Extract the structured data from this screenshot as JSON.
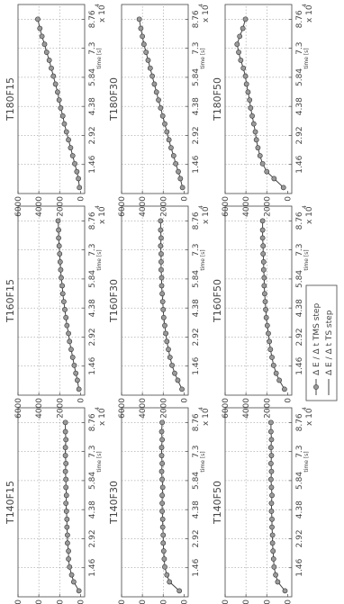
{
  "figure": {
    "x_multiplier": "x 10",
    "x_multiplier_exp": "4",
    "legend": {
      "entries": [
        {
          "label": "Δ E / Δ t  TMS step",
          "marker": "circle",
          "color": "#444444"
        },
        {
          "label": "Δ E / Δ t  TS step",
          "marker": "none",
          "color": "#444444"
        }
      ]
    }
  },
  "chart_data": [
    {
      "type": "line",
      "title": "T140F15",
      "xlabel": "time [s]",
      "ylabel": "",
      "x_ticks": [
        "1.46",
        "2.92",
        "4.38",
        "5.84",
        "7.3",
        "8.76"
      ],
      "y_ticks": [
        "0",
        "2000",
        "4000",
        "6000"
      ],
      "xlim": [
        0,
        9.5
      ],
      "ylim": [
        -400,
        6000
      ],
      "grid": true,
      "x": [
        0.3,
        0.75,
        1.1,
        1.5,
        1.9,
        2.3,
        2.7,
        3.1,
        3.5,
        3.9,
        4.3,
        4.7,
        5.1,
        5.5,
        5.9,
        6.3,
        6.7,
        7.1,
        7.5,
        7.9,
        8.3,
        8.76
      ],
      "series": [
        {
          "values": [
            150,
            650,
            850,
            1050,
            1150,
            1150,
            1250,
            1250,
            1300,
            1300,
            1350,
            1400,
            1350,
            1400,
            1400,
            1450,
            1400,
            1450,
            1450,
            1400,
            1450,
            1450
          ]
        }
      ]
    },
    {
      "type": "line",
      "title": "T140F30",
      "xlabel": "time [s]",
      "ylabel": "",
      "x_ticks": [
        "1.46",
        "2.92",
        "4.38",
        "5.84",
        "7.3",
        "8.76"
      ],
      "y_ticks": [
        "0",
        "2000",
        "4000",
        "6000"
      ],
      "xlim": [
        0,
        9.5
      ],
      "ylim": [
        -400,
        6000
      ],
      "grid": true,
      "x": [
        0.3,
        0.75,
        1.1,
        1.5,
        1.9,
        2.3,
        2.7,
        3.1,
        3.5,
        3.9,
        4.3,
        4.7,
        5.1,
        5.5,
        5.9,
        6.3,
        6.7,
        7.1,
        7.5,
        7.9,
        8.3,
        8.76
      ],
      "series": [
        {
          "values": [
            450,
            1400,
            1650,
            1850,
            1900,
            1950,
            2000,
            2000,
            2050,
            2050,
            2100,
            2100,
            2100,
            2050,
            2100,
            2150,
            2100,
            2150,
            2150,
            2100,
            2150,
            2100
          ]
        }
      ]
    },
    {
      "type": "line",
      "title": "T140F50",
      "xlabel": "time [s]",
      "ylabel": "",
      "x_ticks": [
        "1.46",
        "2.92",
        "4.38",
        "5.84",
        "7.3",
        "8.76"
      ],
      "y_ticks": [
        "0",
        "2000",
        "4000",
        "6000"
      ],
      "xlim": [
        0,
        9.5
      ],
      "ylim": [
        -400,
        6000
      ],
      "grid": true,
      "x": [
        0.3,
        0.75,
        1.1,
        1.5,
        1.9,
        2.3,
        2.7,
        3.1,
        3.5,
        3.9,
        4.3,
        4.7,
        5.1,
        5.5,
        5.9,
        6.3,
        6.7,
        7.1,
        7.5,
        7.9,
        8.3,
        8.76
      ],
      "series": [
        {
          "values": [
            250,
            950,
            1150,
            1300,
            1350,
            1400,
            1450,
            1450,
            1500,
            1500,
            1550,
            1550,
            1500,
            1550,
            1600,
            1550,
            1600,
            1550,
            1600,
            1550,
            1600,
            1600
          ]
        }
      ]
    },
    {
      "type": "line",
      "title": "T160F15",
      "xlabel": "time [s]",
      "ylabel": "",
      "x_ticks": [
        "1.46",
        "2.92",
        "4.38",
        "5.84",
        "7.3",
        "8.76"
      ],
      "y_ticks": [
        "0",
        "2000",
        "4000",
        "6000"
      ],
      "xlim": [
        0,
        9.5
      ],
      "ylim": [
        -400,
        6000
      ],
      "grid": true,
      "x": [
        0.3,
        0.75,
        1.1,
        1.5,
        1.9,
        2.3,
        2.7,
        3.1,
        3.5,
        3.9,
        4.3,
        4.7,
        5.1,
        5.5,
        5.9,
        6.3,
        6.7,
        7.1,
        7.5,
        7.9,
        8.3,
        8.76
      ],
      "series": [
        {
          "values": [
            150,
            300,
            450,
            600,
            750,
            900,
            1050,
            1150,
            1300,
            1400,
            1500,
            1600,
            1700,
            1750,
            1850,
            1900,
            1950,
            2000,
            2050,
            2100,
            2100,
            2150
          ]
        }
      ]
    },
    {
      "type": "line",
      "title": "T160F30",
      "xlabel": "time [s]",
      "ylabel": "",
      "x_ticks": [
        "1.46",
        "2.92",
        "4.38",
        "5.84",
        "7.3",
        "8.76"
      ],
      "y_ticks": [
        "0",
        "2000",
        "4000",
        "6000"
      ],
      "xlim": [
        0,
        9.5
      ],
      "ylim": [
        -400,
        6000
      ],
      "grid": true,
      "x": [
        0.3,
        0.75,
        1.1,
        1.5,
        1.9,
        2.3,
        2.7,
        3.1,
        3.5,
        3.9,
        4.3,
        4.7,
        5.1,
        5.5,
        5.9,
        6.3,
        6.7,
        7.1,
        7.5,
        7.9,
        8.3,
        8.76
      ],
      "series": [
        {
          "values": [
            200,
            600,
            900,
            1150,
            1350,
            1500,
            1650,
            1750,
            1850,
            1950,
            2000,
            2050,
            2100,
            2150,
            2150,
            2200,
            2200,
            2200,
            2250,
            2200,
            2250,
            2250
          ]
        }
      ]
    },
    {
      "type": "line",
      "title": "T160F50",
      "xlabel": "time [s]",
      "ylabel": "",
      "x_ticks": [
        "1.46",
        "2.92",
        "4.38",
        "5.84",
        "7.3",
        "8.76"
      ],
      "y_ticks": [
        "0",
        "2000",
        "4000",
        "6000"
      ],
      "xlim": [
        0,
        9.5
      ],
      "ylim": [
        -400,
        6000
      ],
      "grid": true,
      "x": [
        0.3,
        0.75,
        1.1,
        1.5,
        1.9,
        2.3,
        2.7,
        3.1,
        3.5,
        3.9,
        4.3,
        4.7,
        5.1,
        5.5,
        5.9,
        6.3,
        6.7,
        7.1,
        7.5,
        7.9,
        8.3,
        8.76
      ],
      "series": [
        {
          "values": [
            300,
            800,
            1100,
            1350,
            1500,
            1650,
            1750,
            1850,
            1950,
            2050,
            2100,
            2150,
            2200,
            2250,
            2250,
            2300,
            2300,
            2350,
            2350,
            2400,
            2400,
            2400
          ]
        }
      ]
    },
    {
      "type": "line",
      "title": "T180F15",
      "xlabel": "time [s]",
      "ylabel": "",
      "x_ticks": [
        "1.46",
        "2.92",
        "4.38",
        "5.84",
        "7.3",
        "8.76"
      ],
      "y_ticks": [
        "0",
        "2000",
        "4000",
        "6000"
      ],
      "xlim": [
        0,
        9.5
      ],
      "ylim": [
        -400,
        6000
      ],
      "grid": true,
      "x": [
        0.3,
        0.75,
        1.1,
        1.5,
        1.9,
        2.3,
        2.7,
        3.1,
        3.5,
        3.9,
        4.3,
        4.7,
        5.1,
        5.5,
        5.9,
        6.3,
        6.7,
        7.1,
        7.5,
        7.9,
        8.3,
        8.76
      ],
      "series": [
        {
          "values": [
            100,
            200,
            350,
            550,
            750,
            950,
            1150,
            1350,
            1550,
            1700,
            1900,
            2050,
            2200,
            2400,
            2600,
            2800,
            3000,
            3250,
            3450,
            3700,
            3900,
            4100
          ]
        }
      ]
    },
    {
      "type": "line",
      "title": "T180F30",
      "xlabel": "time [s]",
      "ylabel": "",
      "x_ticks": [
        "1.46",
        "2.92",
        "4.38",
        "5.84",
        "7.3",
        "8.76"
      ],
      "y_ticks": [
        "0",
        "2000",
        "4000",
        "6000"
      ],
      "xlim": [
        0,
        9.5
      ],
      "ylim": [
        -400,
        6000
      ],
      "grid": true,
      "x": [
        0.3,
        0.75,
        1.1,
        1.5,
        1.9,
        2.3,
        2.7,
        3.1,
        3.5,
        3.9,
        4.3,
        4.7,
        5.1,
        5.5,
        5.9,
        6.3,
        6.7,
        7.1,
        7.5,
        7.9,
        8.3,
        8.76
      ],
      "series": [
        {
          "values": [
            150,
            350,
            550,
            800,
            1000,
            1250,
            1450,
            1650,
            1850,
            2050,
            2250,
            2450,
            2650,
            2850,
            3050,
            3250,
            3450,
            3650,
            3850,
            4000,
            4150,
            4300
          ]
        }
      ]
    },
    {
      "type": "line",
      "title": "T180F50",
      "xlabel": "time [s]",
      "ylabel": "",
      "x_ticks": [
        "1.46",
        "2.92",
        "4.38",
        "5.84",
        "7.3",
        "8.76"
      ],
      "y_ticks": [
        "0",
        "2000",
        "4000",
        "6000"
      ],
      "xlim": [
        0,
        9.5
      ],
      "ylim": [
        -400,
        6000
      ],
      "grid": true,
      "x": [
        0.3,
        0.75,
        1.1,
        1.5,
        1.9,
        2.3,
        2.7,
        3.1,
        3.5,
        3.9,
        4.3,
        4.7,
        5.1,
        5.5,
        5.9,
        6.3,
        6.7,
        7.1,
        7.5,
        7.9,
        8.3,
        8.76
      ],
      "series": [
        {
          "values": [
            400,
            1300,
            2000,
            2400,
            2650,
            2850,
            3000,
            3100,
            3250,
            3400,
            3550,
            3650,
            3800,
            3950,
            4050,
            4250,
            4500,
            4700,
            4850,
            4600,
            4300,
            4050
          ]
        }
      ]
    }
  ]
}
